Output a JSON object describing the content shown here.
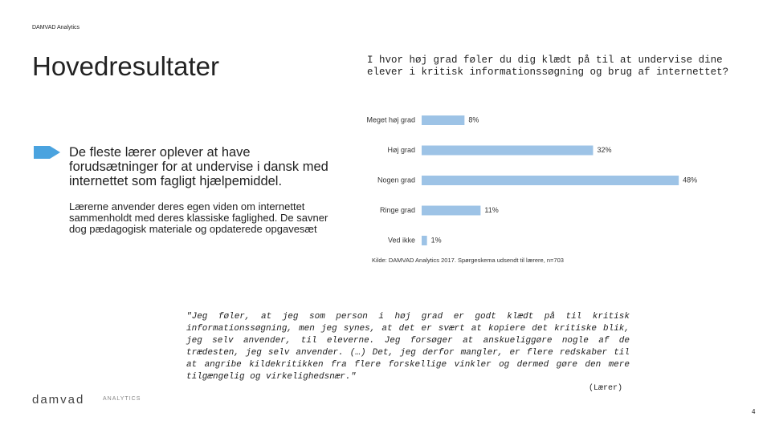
{
  "header": {
    "brand": "DAMVAD Analytics",
    "title": "Hovedresultater"
  },
  "bullet": {
    "heading": "De fleste lærer oplever at have forudsætninger for at undervise i dansk med internettet som fagligt hjælpemiddel.",
    "body": "Lærerne anvender deres egen viden om internettet sammenholdt med deres klassiske faglighed. De savner dog pædagogisk materiale og  opdaterede opgavesæt"
  },
  "chart_data": {
    "type": "bar",
    "orientation": "horizontal",
    "title": "I hvor høj grad føler du dig klædt på til at undervise dine elever i kritisk informationssøgning og brug af internettet?",
    "categories": [
      "Meget høj grad",
      "Høj grad",
      "Nogen grad",
      "Ringe grad",
      "Ved ikke"
    ],
    "values": [
      8,
      32,
      48,
      11,
      1
    ],
    "value_labels": [
      "8%",
      "32%",
      "48%",
      "11%",
      "1%"
    ],
    "color": "#9dc3e6",
    "source": "Kilde: DAMVAD Analytics 2017. Spørgeskema udsendt til lærere, n=703"
  },
  "quote": {
    "text": "\"Jeg føler, at jeg som person i høj grad er godt klædt på til kritisk informationssøgning, men jeg synes, at det er svært at kopiere det kritiske blik, jeg selv anvender, til eleverne. Jeg forsøger at anskueliggøre nogle af de trædesten, jeg selv anvender. (…) Det, jeg derfor mangler, er flere redskaber til at angribe kildekritikken fra flere forskellige vinkler og dermed gøre den mere tilgængelig og virkelighedsnær.\"",
    "author": "(Lærer)"
  },
  "logo": {
    "name": "damvad",
    "tagline": "ANALYTICS"
  },
  "page_number": "4"
}
